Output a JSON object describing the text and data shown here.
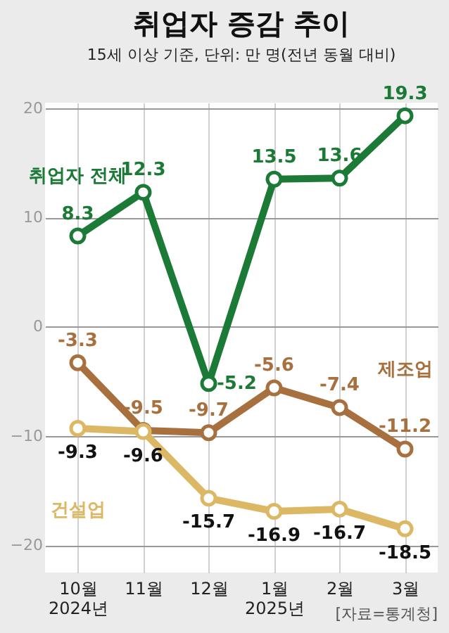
{
  "chart_data": {
    "type": "line",
    "title": "취업자 증감 추이",
    "subtitle": "15세 이상 기준, 단위: 만 명(전년 동월 대비)",
    "categories": [
      "10월\n2024년",
      "11월",
      "12월",
      "1월\n2025년",
      "2월",
      "3월"
    ],
    "series": [
      {
        "name": "취업자 전체",
        "color": "#1b7a35",
        "values": [
          8.3,
          12.3,
          -5.2,
          13.5,
          13.6,
          19.3
        ]
      },
      {
        "name": "제조업",
        "color": "#a8703f",
        "values": [
          -3.3,
          -9.5,
          -9.7,
          -5.6,
          -7.4,
          -11.2
        ]
      },
      {
        "name": "건설업",
        "color": "#dcb865",
        "values": [
          -9.3,
          -9.6,
          -15.7,
          -16.9,
          -16.7,
          -18.5
        ]
      }
    ],
    "ylim": [
      -22.5,
      20.5
    ],
    "yticks": [
      -20,
      -10,
      0,
      10,
      20
    ],
    "grid": true,
    "marker": "circle",
    "line_style": "solid",
    "data_labels": true,
    "annotations": [
      "[자료=통계청]"
    ]
  }
}
